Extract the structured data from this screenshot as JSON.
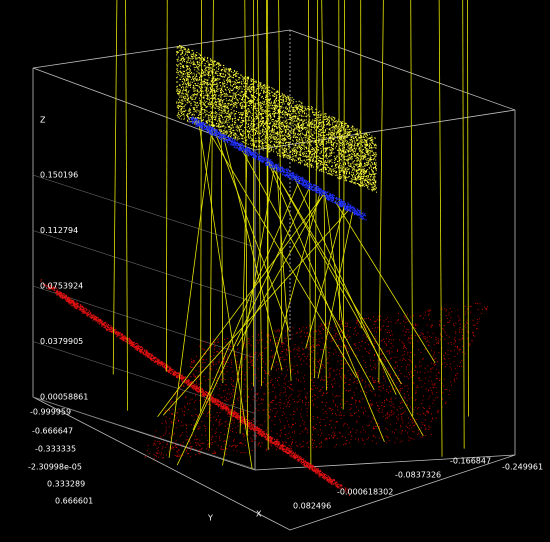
{
  "axes": {
    "z": {
      "name": "Z",
      "ticks": [
        "0.150196",
        "0.112794",
        "0.0753924",
        "0.0379905",
        "0.00058861"
      ]
    },
    "y": {
      "name": "Y",
      "ticks": [
        "-0.999959",
        "-0.666647",
        "-0.333335",
        "-2.30998e-05",
        "0.333289",
        "0.666601"
      ]
    },
    "x": {
      "name": "X",
      "ticks": [
        "0.082496",
        "-0.000618302",
        "-0.0837326",
        "-0.166847",
        "-0.249961"
      ]
    }
  }
}
